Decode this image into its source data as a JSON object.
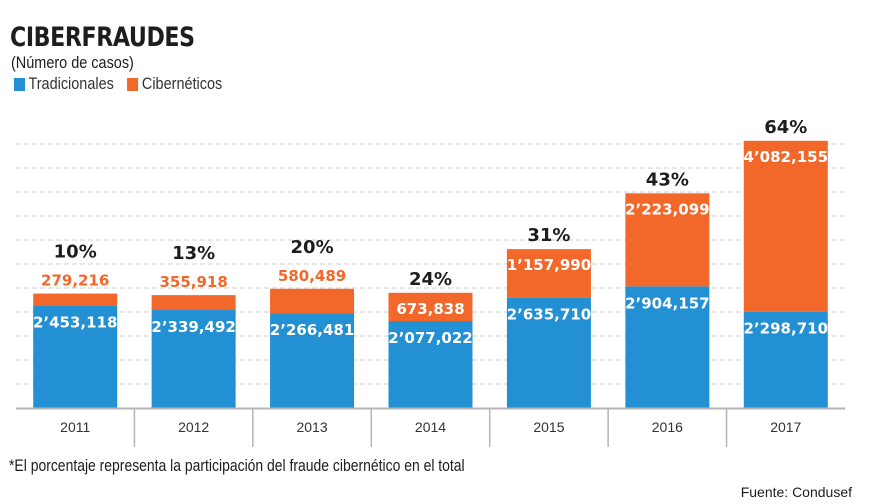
{
  "header": {
    "title": "CIBERFRAUDES",
    "subtitle": "(Número de casos)"
  },
  "legend": [
    {
      "label": "Tradicionales",
      "color": "#2390d3"
    },
    {
      "label": "Cibernéticos",
      "color": "#f2682a"
    }
  ],
  "footnote": "*El porcentaje representa la participación del fraude cibernético en el total",
  "source": "Fuente: Condusef",
  "chart_data": {
    "type": "bar",
    "stacked": true,
    "title": "CIBERFRAUDES",
    "subtitle": "(Número de casos)",
    "xlabel": "",
    "ylabel": "",
    "categories": [
      "2011",
      "2012",
      "2013",
      "2014",
      "2015",
      "2016",
      "2017"
    ],
    "series": [
      {
        "name": "Tradicionales",
        "color": "#2390d3",
        "values": [
          2453118,
          2339492,
          2266481,
          2077022,
          2635710,
          2904157,
          2298710
        ],
        "labels": [
          "2’453,118",
          "2’339,492",
          "2’266,481",
          "2’077,022",
          "2’635,710",
          "2’904,157",
          "2’298,710"
        ]
      },
      {
        "name": "Cibernéticos",
        "color": "#f2682a",
        "values": [
          279216,
          355918,
          580489,
          673838,
          1157990,
          2223099,
          4082155
        ],
        "labels": [
          "279,216",
          "355,918",
          "580,489",
          "673,838",
          "1’157,990",
          "2’223,099",
          "4’082,155"
        ]
      }
    ],
    "percent_labels": [
      "10%",
      "13%",
      "20%",
      "24%",
      "31%",
      "43%",
      "64%"
    ],
    "ylim": [
      0,
      6400000
    ],
    "grid": true,
    "legend": "top-left"
  }
}
